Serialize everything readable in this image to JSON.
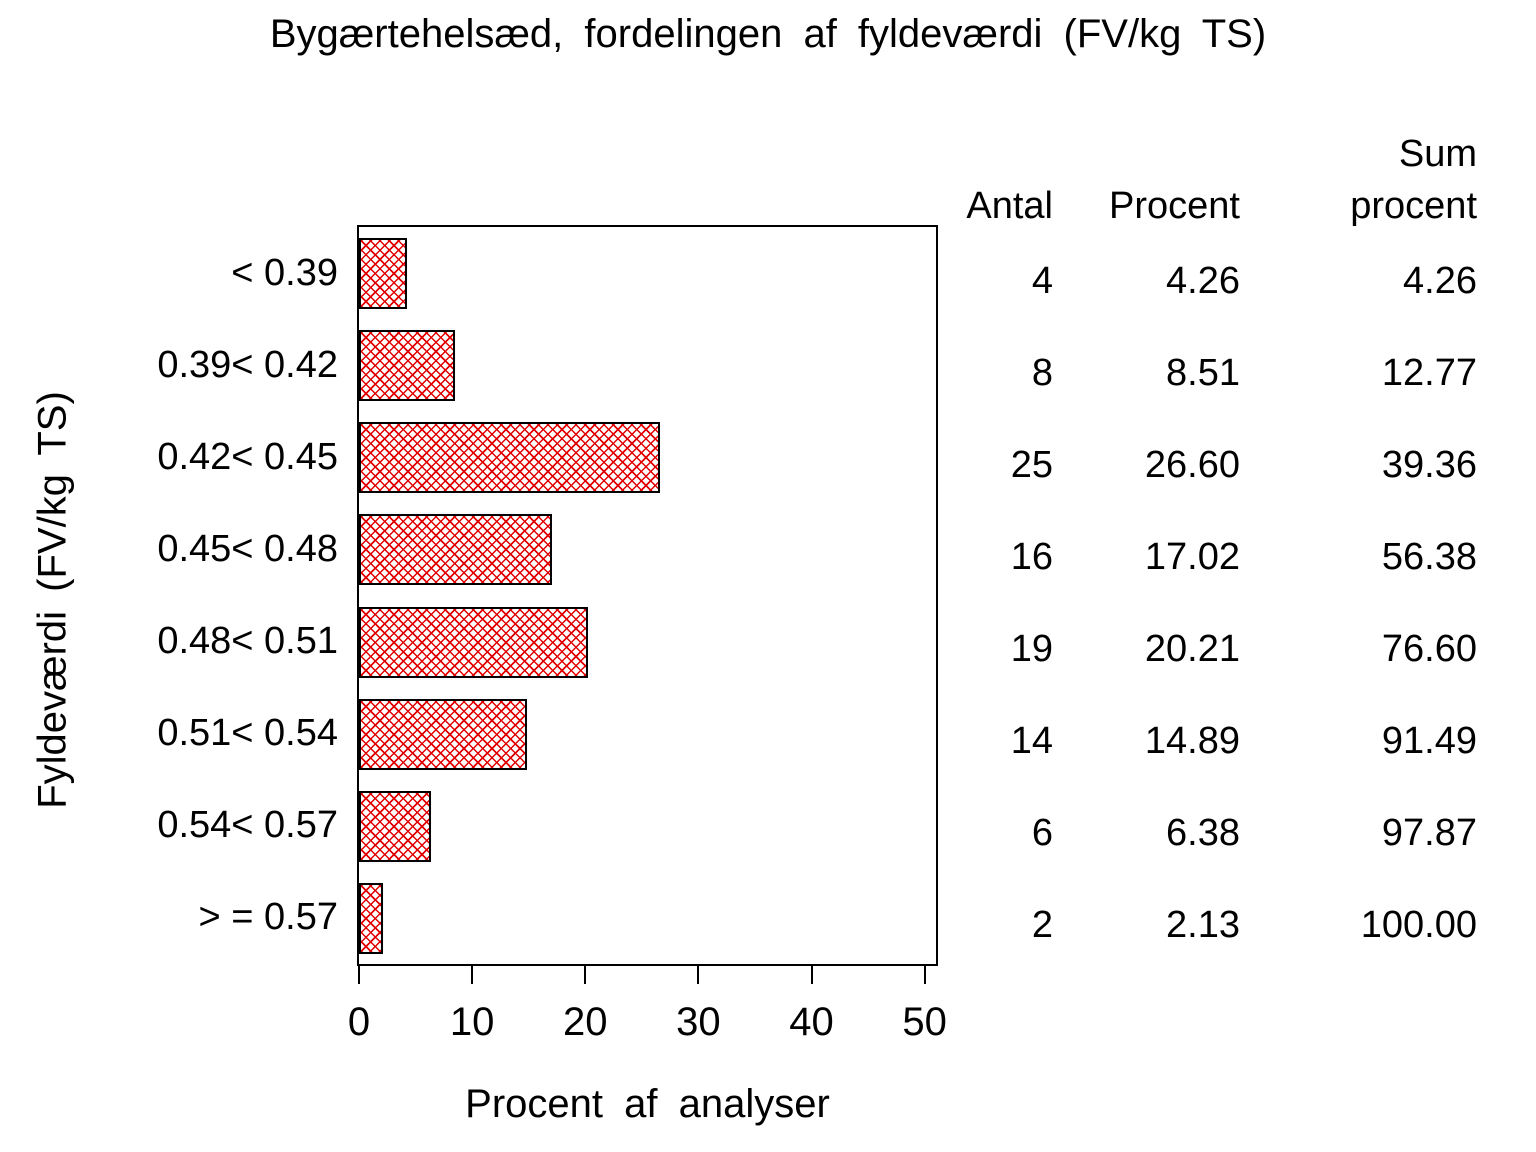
{
  "title": "Bygærtehelsæd, fordelingen af fyldeværdi (FV/kg TS)",
  "chart_data": {
    "type": "bar",
    "orientation": "horizontal",
    "title": "Bygærtehelsæd, fordelingen af fyldeværdi (FV/kg TS)",
    "xlabel": "Procent af analyser",
    "ylabel": "Fyldeværdi (FV/kg TS)",
    "categories": [
      "< 0.39",
      "0.39< 0.42",
      "0.42< 0.45",
      "0.45< 0.48",
      "0.48< 0.51",
      "0.51< 0.54",
      "0.54< 0.57",
      "> = 0.57"
    ],
    "values": [
      4.26,
      8.51,
      26.6,
      17.02,
      20.21,
      14.89,
      6.38,
      2.13
    ],
    "counts": [
      4,
      8,
      25,
      16,
      19,
      14,
      6,
      2
    ],
    "cum_percents": [
      4.26,
      12.77,
      39.36,
      56.38,
      76.6,
      91.49,
      97.87,
      100.0
    ],
    "xticks": [
      "0",
      "10",
      "20",
      "30",
      "40",
      "50"
    ],
    "xlim": [
      0,
      51
    ],
    "grid": false,
    "legend": "none",
    "bar_fill_pattern": "diagonal-crosshatch",
    "bar_pattern_color": "#e00000",
    "bar_border_color": "#000000",
    "frame_color": "#000000",
    "background_color": "#ffffff"
  },
  "table": {
    "header_antal": "Antal",
    "header_procent": "Procent",
    "header_sum_line1": "Sum",
    "header_sum_line2": "procent",
    "rows": [
      {
        "antal": "4",
        "procent": "4.26",
        "sum": "4.26"
      },
      {
        "antal": "8",
        "procent": "8.51",
        "sum": "12.77"
      },
      {
        "antal": "25",
        "procent": "26.60",
        "sum": "39.36"
      },
      {
        "antal": "16",
        "procent": "17.02",
        "sum": "56.38"
      },
      {
        "antal": "19",
        "procent": "20.21",
        "sum": "76.60"
      },
      {
        "antal": "14",
        "procent": "14.89",
        "sum": "91.49"
      },
      {
        "antal": "6",
        "procent": "6.38",
        "sum": "97.87"
      },
      {
        "antal": "2",
        "procent": "2.13",
        "sum": "100.00"
      }
    ]
  }
}
